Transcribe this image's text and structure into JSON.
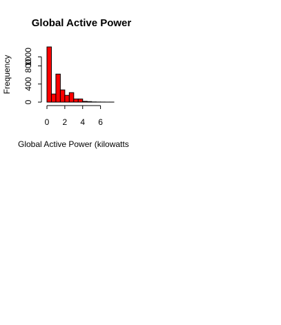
{
  "chart_data": {
    "type": "bar",
    "title": "Global Active Power",
    "xlabel": "Global Active Power (kilowatts",
    "ylabel": "Frequency",
    "bin_edges": [
      0,
      0.5,
      1,
      1.5,
      2,
      2.5,
      3,
      3.5,
      4,
      4.5,
      5,
      5.5,
      6,
      6.5,
      7,
      7.5
    ],
    "values": [
      1220,
      180,
      620,
      270,
      150,
      210,
      70,
      70,
      18,
      12,
      5,
      3,
      2,
      1,
      1
    ],
    "xlim": [
      0,
      7.5
    ],
    "ylim": [
      0,
      1220
    ],
    "xticks": [
      0,
      2,
      4,
      6
    ],
    "yticks": [
      0,
      400,
      800,
      1000
    ],
    "bar_fill": "#ff0000",
    "bar_stroke": "#000000",
    "grid": false,
    "legend": "none"
  }
}
